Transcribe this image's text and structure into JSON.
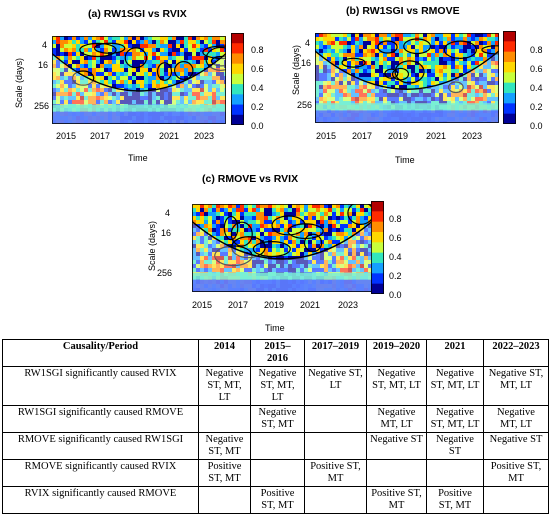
{
  "panels": [
    {
      "title": "(a) RW1SGI vs RVIX",
      "ylabel": "Scale (days)",
      "xlabel": "Time",
      "yticks": [
        "4",
        "16",
        "256"
      ],
      "xticks": [
        "2015",
        "2017",
        "2019",
        "2021",
        "2023"
      ],
      "cbar_ticks": [
        "0.8",
        "0.6",
        "0.4",
        "0.2",
        "0.0"
      ]
    },
    {
      "title": "(b) RW1SGI vs RMOVE",
      "ylabel": "Scale (days)",
      "xlabel": "Time",
      "yticks": [
        "4",
        "16",
        "256"
      ],
      "xticks": [
        "2015",
        "2017",
        "2019",
        "2021",
        "2023"
      ],
      "cbar_ticks": [
        "0.8",
        "0.6",
        "0.4",
        "0.2",
        "0.0"
      ]
    },
    {
      "title": "(c) RMOVE vs RVIX",
      "ylabel": "Scale (days)",
      "xlabel": "Time",
      "yticks": [
        "4",
        "16",
        "256"
      ],
      "xticks": [
        "2015",
        "2017",
        "2019",
        "2021",
        "2023"
      ],
      "cbar_ticks": [
        "0.8",
        "0.6",
        "0.4",
        "0.2",
        "0.0"
      ]
    }
  ],
  "colorbar_colors": [
    "#b40000",
    "#ff2a00",
    "#ff8c00",
    "#ffd700",
    "#c8ff3c",
    "#32e6be",
    "#14a0ff",
    "#0032ff",
    "#000096"
  ],
  "table": {
    "headers": [
      "Causality/Period",
      "2014",
      "2015–2016",
      "2017–2019",
      "2019–2020",
      "2021",
      "2022–2023"
    ],
    "rows": [
      {
        "label": "RW1SGI significantly caused RVIX",
        "cells": [
          "Negative ST, MT, LT",
          "Negative ST, MT, LT",
          "Negative ST, LT",
          "Negative ST, MT, LT",
          "Negative ST, MT, LT",
          "Negative ST, MT, LT"
        ]
      },
      {
        "label": "RW1SGI significantly caused RMOVE",
        "cells": [
          "",
          "Negative ST, MT",
          "",
          "Negative MT, LT",
          "Negative ST, MT, LT",
          "Negative MT, LT"
        ]
      },
      {
        "label": "RMOVE significantly caused RW1SGI",
        "cells": [
          "Negative ST, MT",
          "",
          "",
          "Negative ST",
          "Negative ST",
          "Negative ST"
        ]
      },
      {
        "label": "RMOVE significantly caused RVIX",
        "cells": [
          "Positive ST, MT",
          "",
          "Positive ST, MT",
          "",
          "",
          "Positive ST, MT"
        ]
      },
      {
        "label": "RVIX significantly caused RMOVE",
        "cells": [
          "",
          "Positive ST, MT",
          "",
          "Positive ST, MT",
          "Positive ST, MT",
          ""
        ]
      }
    ]
  }
}
